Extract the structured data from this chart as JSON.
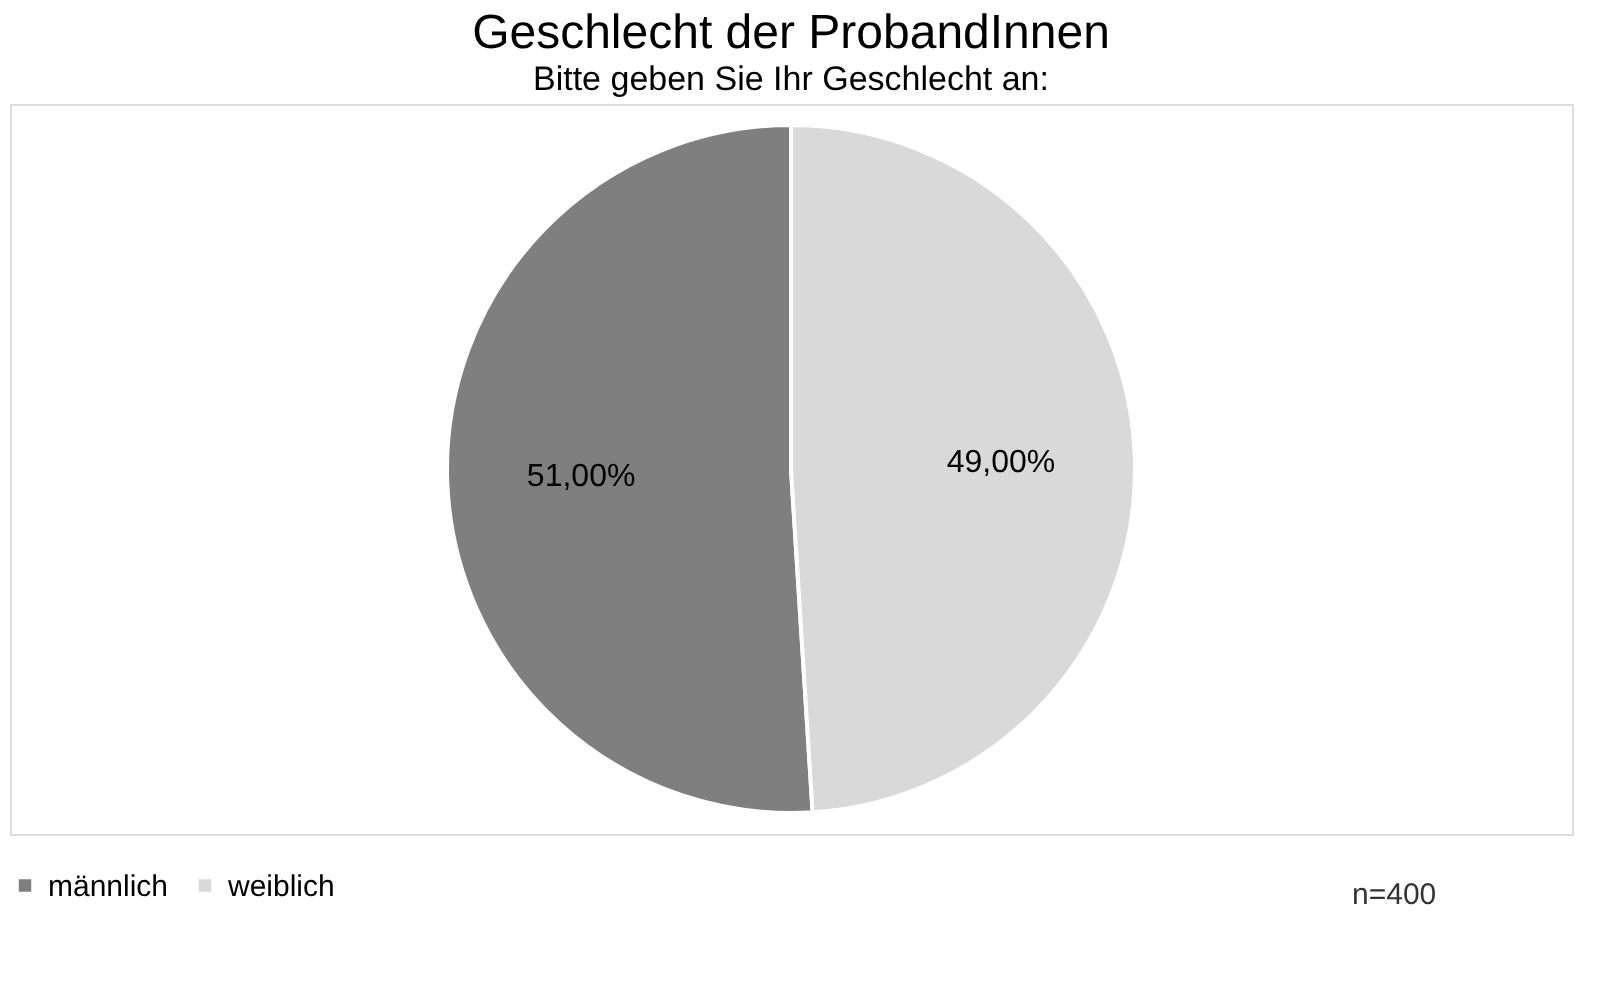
{
  "chart_data": {
    "type": "pie",
    "title": "Geschlecht der ProbandInnen",
    "subtitle": "Bitte geben Sie Ihr Geschlecht an:",
    "categories": [
      "männlich",
      "weiblich"
    ],
    "values": [
      51,
      49
    ],
    "colors": [
      "#7f7f7f",
      "#d9d9d9"
    ],
    "value_labels": [
      "51,00%",
      "49,00%"
    ],
    "legend": "bottom",
    "annotations": [
      "n=400"
    ]
  }
}
